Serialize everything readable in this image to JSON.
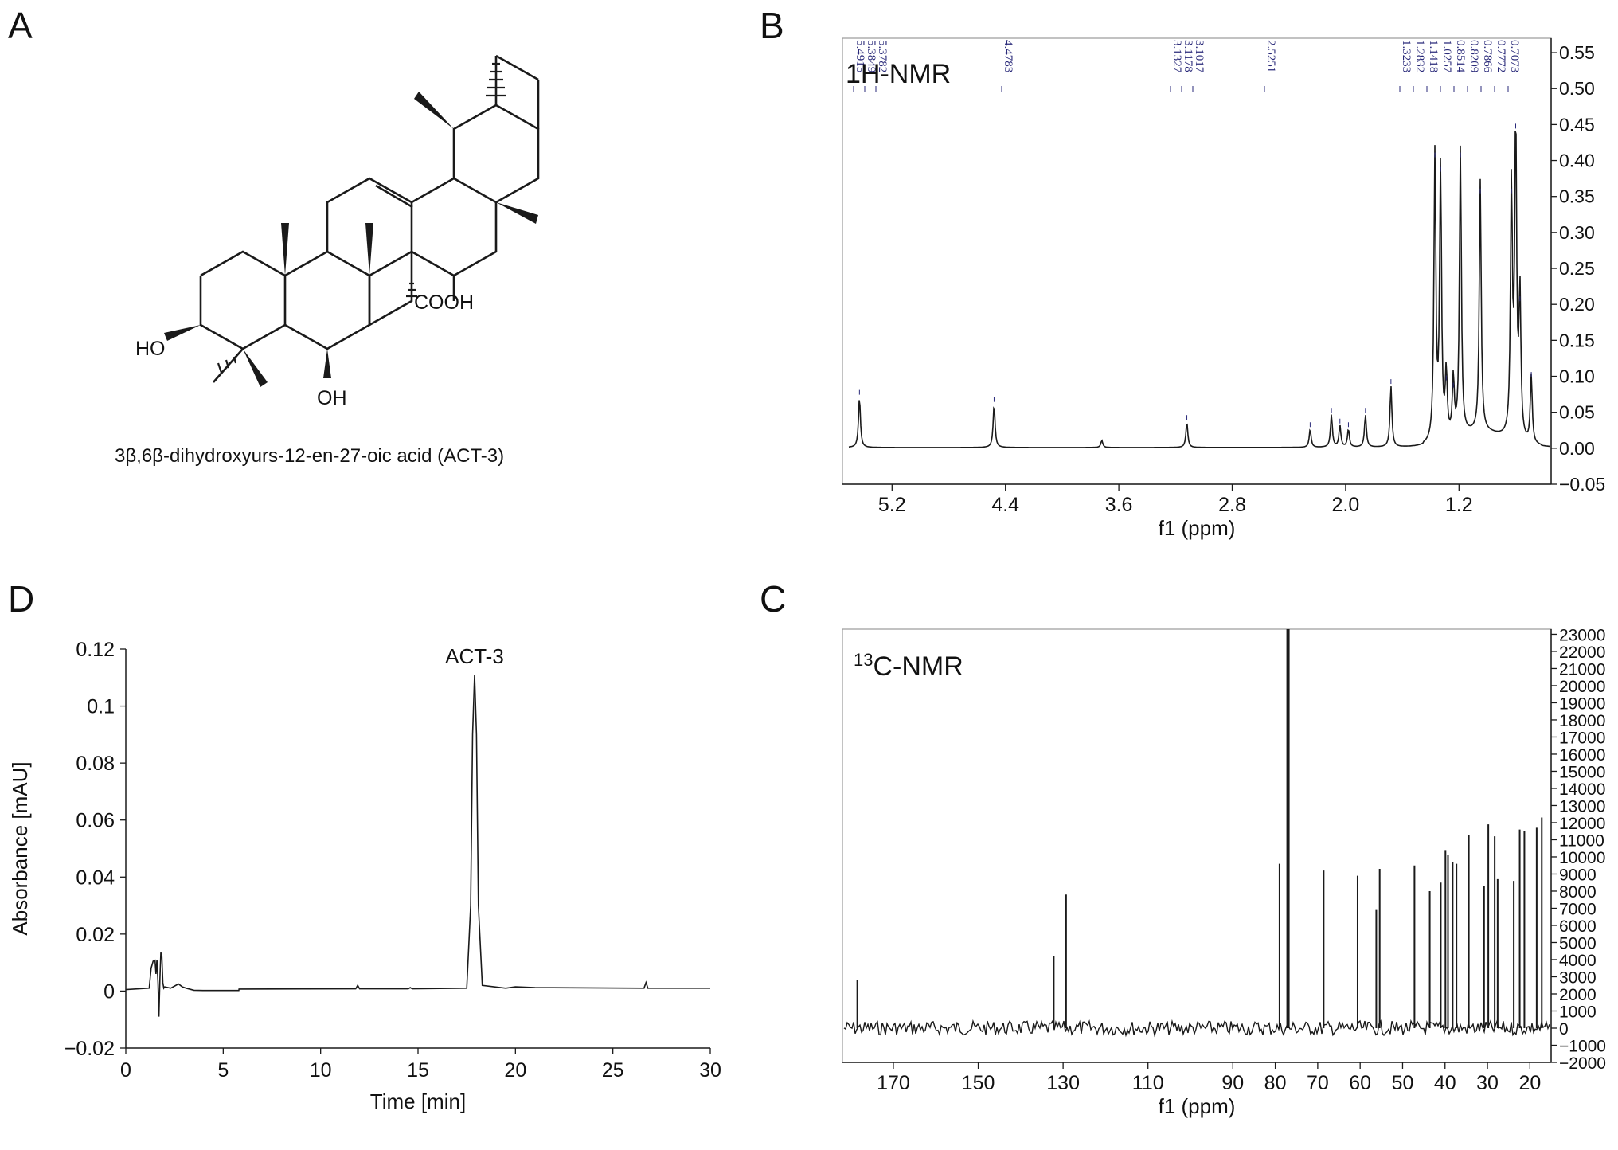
{
  "panels": {
    "A": {
      "label": "A",
      "compound_caption": "3β,6β-dihydroxyurs-12-en-27-oic acid (ACT-3)",
      "groups": {
        "ho": "HO",
        "oh": "OH",
        "cooh": "COOH"
      }
    },
    "B": {
      "label": "B"
    },
    "C": {
      "label": "C"
    },
    "D": {
      "label": "D"
    }
  },
  "colors": {
    "line": "#1a1a1a",
    "peak_label": "#2a2a7a",
    "background": "#ffffff"
  },
  "chart_data": [
    {
      "id": "B",
      "type": "line",
      "title": "1H-NMR",
      "xlabel": "f1 (ppm)",
      "ylabel": "",
      "xlim": [
        5.55,
        0.55
      ],
      "ylim": [
        -0.05,
        0.57
      ],
      "x_ticks": [
        5.2,
        4.4,
        3.6,
        2.8,
        2.0,
        1.2
      ],
      "y_ticks": [
        0.55,
        0.5,
        0.45,
        0.4,
        0.35,
        0.3,
        0.25,
        0.2,
        0.15,
        0.1,
        0.05,
        0.0,
        -0.05
      ],
      "y_tick_labels": [
        "0.55",
        "0.50",
        "0.45",
        "0.40",
        "0.35",
        "0.30",
        "0.25",
        "0.20",
        "0.15",
        "0.10",
        "0.05",
        "0.00",
        "−0.05"
      ],
      "y_axis_side": "right",
      "peak_labels": [
        "5.4915",
        "5.3849",
        "5.3782",
        "4.4783",
        "3.1327",
        "3.1178",
        "3.1017",
        "2.5251",
        "1.3233",
        "1.2832",
        "1.1418",
        "1.0257",
        "0.8514",
        "0.8209",
        "0.7866",
        "0.7772",
        "0.7073"
      ],
      "peaks": [
        {
          "x": 5.43,
          "y": 0.07
        },
        {
          "x": 4.48,
          "y": 0.06
        },
        {
          "x": 3.72,
          "y": 0.01
        },
        {
          "x": 3.12,
          "y": 0.035
        },
        {
          "x": 2.25,
          "y": 0.025
        },
        {
          "x": 2.1,
          "y": 0.045
        },
        {
          "x": 2.04,
          "y": 0.03
        },
        {
          "x": 1.98,
          "y": 0.025
        },
        {
          "x": 1.86,
          "y": 0.045
        },
        {
          "x": 1.68,
          "y": 0.085
        },
        {
          "x": 1.37,
          "y": 0.4
        },
        {
          "x": 1.33,
          "y": 0.38
        },
        {
          "x": 1.29,
          "y": 0.09
        },
        {
          "x": 1.24,
          "y": 0.08
        },
        {
          "x": 1.19,
          "y": 0.4
        },
        {
          "x": 1.05,
          "y": 0.35
        },
        {
          "x": 0.83,
          "y": 0.35
        },
        {
          "x": 0.8,
          "y": 0.44
        },
        {
          "x": 0.77,
          "y": 0.2
        },
        {
          "x": 0.69,
          "y": 0.095
        }
      ]
    },
    {
      "id": "C",
      "type": "line",
      "title": "13C-NMR",
      "title_super": "13",
      "title_main": "C-NMR",
      "xlabel": "f1 (ppm)",
      "ylabel": "",
      "xlim": [
        182,
        15
      ],
      "ylim": [
        -2000,
        23300
      ],
      "x_ticks": [
        170,
        150,
        130,
        110,
        90,
        80,
        70,
        60,
        50,
        40,
        30,
        20
      ],
      "y_ticks": [
        23000,
        22000,
        21000,
        20000,
        19000,
        18000,
        17000,
        16000,
        15000,
        14000,
        13000,
        12000,
        11000,
        10000,
        9000,
        8000,
        7000,
        6000,
        5000,
        4000,
        3000,
        2000,
        1000,
        0,
        -1000,
        -2000
      ],
      "y_tick_labels": [
        "23000",
        "22000",
        "21000",
        "20000",
        "19000",
        "18000",
        "17000",
        "16000",
        "15000",
        "14000",
        "13000",
        "12000",
        "11000",
        "10000",
        "9000",
        "8000",
        "7000",
        "6000",
        "5000",
        "4000",
        "3000",
        "2000",
        "1000",
        "0",
        "−1000",
        "−2000"
      ],
      "y_axis_side": "right",
      "peaks": [
        {
          "x": 178.5,
          "y": 2800
        },
        {
          "x": 132.2,
          "y": 4200
        },
        {
          "x": 129.3,
          "y": 7800
        },
        {
          "x": 79.0,
          "y": 9600
        },
        {
          "x": 77.0,
          "y": 23300
        },
        {
          "x": 68.6,
          "y": 9200
        },
        {
          "x": 60.6,
          "y": 8900
        },
        {
          "x": 56.2,
          "y": 6900
        },
        {
          "x": 55.4,
          "y": 9300
        },
        {
          "x": 47.2,
          "y": 9500
        },
        {
          "x": 43.6,
          "y": 8000
        },
        {
          "x": 41.0,
          "y": 8500
        },
        {
          "x": 39.9,
          "y": 10400
        },
        {
          "x": 39.3,
          "y": 10100
        },
        {
          "x": 38.2,
          "y": 9700
        },
        {
          "x": 37.3,
          "y": 9600
        },
        {
          "x": 34.4,
          "y": 11300
        },
        {
          "x": 30.8,
          "y": 8300
        },
        {
          "x": 29.8,
          "y": 11900
        },
        {
          "x": 28.3,
          "y": 11200
        },
        {
          "x": 27.6,
          "y": 8700
        },
        {
          "x": 23.8,
          "y": 8600
        },
        {
          "x": 22.4,
          "y": 11600
        },
        {
          "x": 21.3,
          "y": 11500
        },
        {
          "x": 18.4,
          "y": 11700
        },
        {
          "x": 17.2,
          "y": 12300
        }
      ]
    },
    {
      "id": "D",
      "type": "line",
      "title": "",
      "xlabel": "Time [min]",
      "ylabel": "Absorbance [mAU]",
      "xlim": [
        0,
        30
      ],
      "ylim": [
        -0.02,
        0.12
      ],
      "x_ticks": [
        0,
        5,
        10,
        15,
        20,
        25,
        30
      ],
      "y_ticks": [
        0.12,
        0.1,
        0.08,
        0.06,
        0.04,
        0.02,
        0,
        -0.02
      ],
      "y_tick_labels": [
        "0.12",
        "0.1",
        "0.08",
        "0.06",
        "0.04",
        "0.02",
        "0",
        "−0.02"
      ],
      "annotation": "ACT-3",
      "annotation_at": 17.9,
      "x": [
        0,
        1.2,
        1.3,
        1.4,
        1.5,
        1.55,
        1.6,
        1.65,
        1.7,
        1.75,
        1.8,
        1.85,
        1.9,
        1.95,
        2.0,
        2.3,
        2.7,
        2.9,
        3.1,
        3.5,
        4.0,
        5.8,
        5.81,
        11.8,
        11.9,
        12.0,
        14.5,
        14.6,
        14.7,
        17.5,
        17.7,
        17.8,
        17.9,
        18.0,
        18.1,
        18.3,
        19.5,
        20.0,
        21.0,
        26.6,
        26.7,
        26.8,
        30
      ],
      "y": [
        0.0005,
        0.001,
        0.008,
        0.0105,
        0.0108,
        0.006,
        0.011,
        0.003,
        -0.009,
        0.004,
        0.0135,
        0.012,
        0.003,
        0.001,
        0.0015,
        0.001,
        0.0025,
        0.0015,
        0.001,
        0.0003,
        0.0002,
        0.0002,
        0.0007,
        0.0008,
        0.002,
        0.0008,
        0.0008,
        0.0012,
        0.0008,
        0.001,
        0.03,
        0.09,
        0.111,
        0.09,
        0.03,
        0.002,
        0.001,
        0.0015,
        0.0012,
        0.001,
        0.003,
        0.001,
        0.001
      ]
    }
  ]
}
